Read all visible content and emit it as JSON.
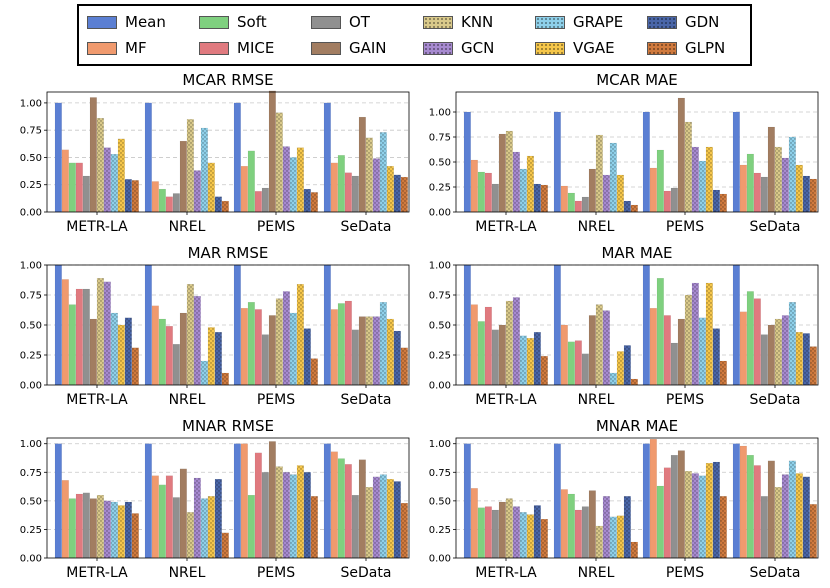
{
  "legend": {
    "items": [
      {
        "name": "Mean",
        "color": "#5b7fd3",
        "pattern": "solid"
      },
      {
        "name": "MF",
        "color": "#f09a6e",
        "pattern": "solid"
      },
      {
        "name": "Soft",
        "color": "#7fd07f",
        "pattern": "solid"
      },
      {
        "name": "MICE",
        "color": "#e07a7f",
        "pattern": "solid"
      },
      {
        "name": "OT",
        "color": "#909090",
        "pattern": "solid"
      },
      {
        "name": "GAIN",
        "color": "#a27d61",
        "pattern": "solid"
      },
      {
        "name": "KNN",
        "color": "#d9c98a",
        "pattern": "dots"
      },
      {
        "name": "GCN",
        "color": "#a78ad0",
        "pattern": "dots"
      },
      {
        "name": "GRAPE",
        "color": "#8ed0ea",
        "pattern": "dots"
      },
      {
        "name": "VGAE",
        "color": "#f5c64a",
        "pattern": "dots"
      },
      {
        "name": "GDN",
        "color": "#4a66a8",
        "pattern": "dots"
      },
      {
        "name": "GLPN",
        "color": "#d07a3e",
        "pattern": "dots"
      }
    ]
  },
  "chart_data": [
    {
      "type": "bar",
      "title": "MCAR RMSE",
      "categories": [
        "METR-LA",
        "NREL",
        "PEMS",
        "SeData"
      ],
      "ylim": [
        0,
        1.1
      ],
      "yticks": [
        "0.00",
        "0.25",
        "0.50",
        "0.75",
        "1.00"
      ],
      "series_values": [
        [
          1.0,
          0.57,
          0.45,
          0.45,
          0.33,
          1.05,
          0.86,
          0.59,
          0.53,
          0.67,
          0.3,
          0.29
        ],
        [
          1.0,
          0.28,
          0.21,
          0.14,
          0.17,
          0.65,
          0.85,
          0.38,
          0.77,
          0.45,
          0.14,
          0.1
        ],
        [
          1.0,
          0.42,
          0.56,
          0.19,
          0.22,
          1.11,
          0.91,
          0.6,
          0.5,
          0.59,
          0.21,
          0.18
        ],
        [
          1.0,
          0.45,
          0.52,
          0.36,
          0.33,
          0.87,
          0.68,
          0.49,
          0.73,
          0.42,
          0.34,
          0.32
        ]
      ]
    },
    {
      "type": "bar",
      "title": "MCAR MAE",
      "categories": [
        "METR-LA",
        "NREL",
        "PEMS",
        "SeData"
      ],
      "ylim": [
        0,
        1.2
      ],
      "yticks": [
        "0.00",
        "0.25",
        "0.50",
        "0.75",
        "1.00"
      ],
      "series_values": [
        [
          1.0,
          0.52,
          0.4,
          0.39,
          0.28,
          0.78,
          0.81,
          0.6,
          0.43,
          0.56,
          0.28,
          0.27
        ],
        [
          1.0,
          0.26,
          0.19,
          0.11,
          0.15,
          0.43,
          0.77,
          0.37,
          0.69,
          0.37,
          0.11,
          0.07
        ],
        [
          1.0,
          0.44,
          0.62,
          0.21,
          0.24,
          1.14,
          0.9,
          0.65,
          0.51,
          0.65,
          0.22,
          0.18
        ],
        [
          1.0,
          0.47,
          0.58,
          0.39,
          0.35,
          0.85,
          0.65,
          0.54,
          0.75,
          0.47,
          0.36,
          0.33
        ]
      ]
    },
    {
      "type": "bar",
      "title": "MAR RMSE",
      "categories": [
        "METR-LA",
        "NREL",
        "PEMS",
        "SeData"
      ],
      "ylim": [
        0,
        1.0
      ],
      "yticks": [
        "0.00",
        "0.25",
        "0.50",
        "0.75",
        "1.00"
      ],
      "series_values": [
        [
          1.0,
          0.88,
          0.67,
          0.8,
          0.8,
          0.55,
          0.89,
          0.86,
          0.6,
          0.5,
          0.56,
          0.31
        ],
        [
          1.0,
          0.66,
          0.55,
          0.49,
          0.34,
          0.6,
          0.84,
          0.74,
          0.2,
          0.48,
          0.44,
          0.1
        ],
        [
          1.0,
          0.64,
          0.69,
          0.63,
          0.42,
          0.58,
          0.72,
          0.78,
          0.6,
          0.84,
          0.47,
          0.22
        ],
        [
          1.0,
          0.63,
          0.68,
          0.7,
          0.46,
          0.57,
          0.57,
          0.57,
          0.69,
          0.55,
          0.45,
          0.31
        ]
      ]
    },
    {
      "type": "bar",
      "title": "MAR MAE",
      "categories": [
        "METR-LA",
        "NREL",
        "PEMS",
        "SeData"
      ],
      "ylim": [
        0,
        1.0
      ],
      "yticks": [
        "0.00",
        "0.25",
        "0.50",
        "0.75",
        "1.00"
      ],
      "series_values": [
        [
          1.0,
          0.67,
          0.53,
          0.65,
          0.46,
          0.5,
          0.7,
          0.73,
          0.41,
          0.39,
          0.44,
          0.24
        ],
        [
          1.0,
          0.5,
          0.36,
          0.37,
          0.26,
          0.58,
          0.67,
          0.62,
          0.1,
          0.28,
          0.33,
          0.05
        ],
        [
          1.0,
          0.64,
          0.89,
          0.58,
          0.35,
          0.55,
          0.75,
          0.85,
          0.56,
          0.85,
          0.47,
          0.2
        ],
        [
          1.0,
          0.61,
          0.78,
          0.72,
          0.42,
          0.5,
          0.55,
          0.58,
          0.69,
          0.44,
          0.43,
          0.32
        ]
      ]
    },
    {
      "type": "bar",
      "title": "MNAR RMSE",
      "categories": [
        "METR-LA",
        "NREL",
        "PEMS",
        "SeData"
      ],
      "ylim": [
        0,
        1.05
      ],
      "yticks": [
        "0.00",
        "0.25",
        "0.50",
        "0.75",
        "1.00"
      ],
      "series_values": [
        [
          1.0,
          0.68,
          0.52,
          0.56,
          0.57,
          0.52,
          0.55,
          0.5,
          0.49,
          0.46,
          0.49,
          0.39
        ],
        [
          1.0,
          0.72,
          0.64,
          0.72,
          0.53,
          0.78,
          0.4,
          0.7,
          0.52,
          0.54,
          0.69,
          0.22
        ],
        [
          1.0,
          1.0,
          0.55,
          0.92,
          0.75,
          1.02,
          0.8,
          0.75,
          0.73,
          0.81,
          0.75,
          0.54
        ],
        [
          1.0,
          0.93,
          0.87,
          0.82,
          0.55,
          0.86,
          0.62,
          0.71,
          0.73,
          0.69,
          0.67,
          0.48
        ]
      ]
    },
    {
      "type": "bar",
      "title": "MNAR MAE",
      "categories": [
        "METR-LA",
        "NREL",
        "PEMS",
        "SeData"
      ],
      "ylim": [
        0,
        1.05
      ],
      "yticks": [
        "0.00",
        "0.25",
        "0.50",
        "0.75",
        "1.00"
      ],
      "series_values": [
        [
          1.0,
          0.61,
          0.44,
          0.45,
          0.42,
          0.49,
          0.52,
          0.45,
          0.4,
          0.38,
          0.46,
          0.34
        ],
        [
          1.0,
          0.6,
          0.56,
          0.42,
          0.45,
          0.59,
          0.28,
          0.54,
          0.36,
          0.37,
          0.54,
          0.14
        ],
        [
          1.0,
          1.04,
          0.63,
          0.79,
          0.9,
          0.94,
          0.76,
          0.74,
          0.72,
          0.83,
          0.84,
          0.54
        ],
        [
          1.0,
          0.98,
          0.9,
          0.81,
          0.54,
          0.85,
          0.62,
          0.73,
          0.85,
          0.74,
          0.71,
          0.47
        ]
      ]
    }
  ]
}
